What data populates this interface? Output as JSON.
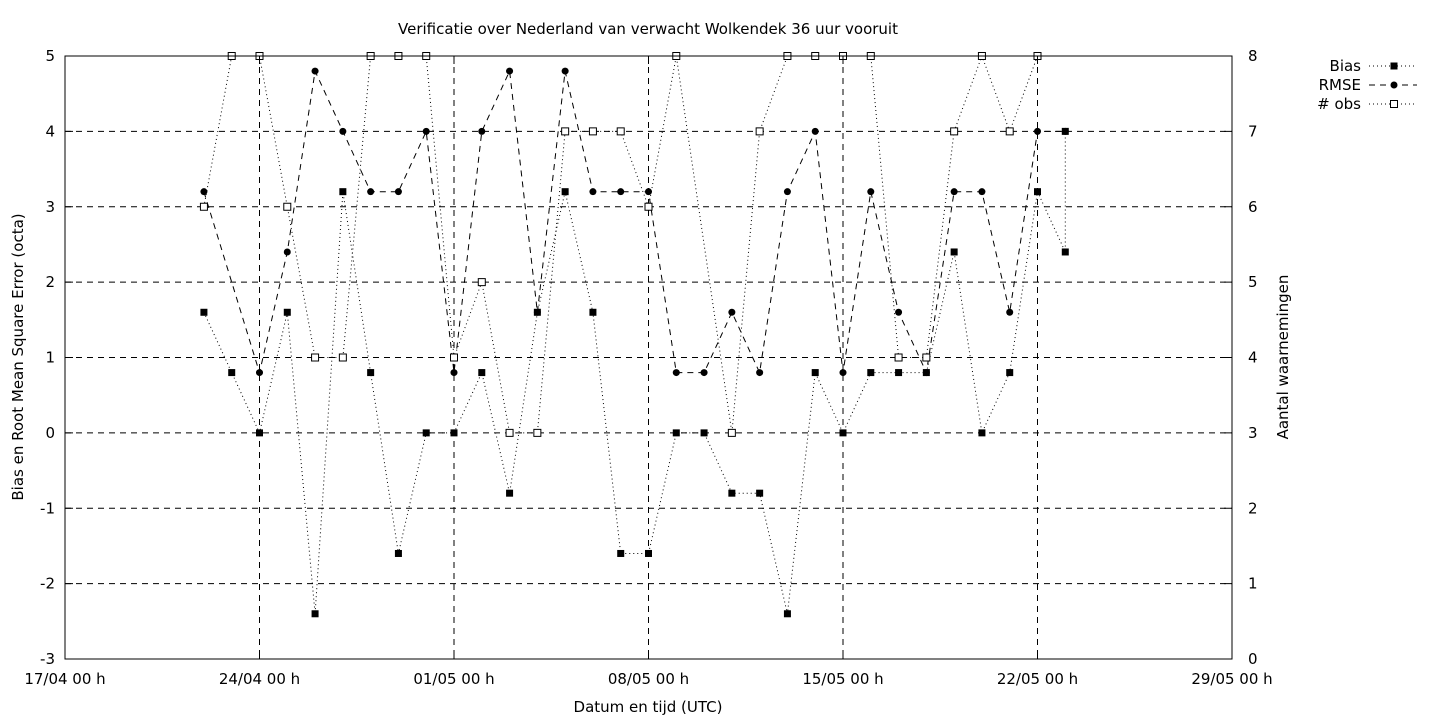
{
  "chart_data": {
    "type": "line",
    "title": "Verificatie over Nederland van verwacht Wolkendek 36 uur vooruit",
    "xlabel": "Datum en tijd (UTC)",
    "ylabel": "Bias en Root Mean Square Error (octa)",
    "y2label": "Aantal waarnemingen",
    "xlim": [
      "2020-04-17 00:00",
      "2020-05-29 00:00"
    ],
    "ylim": [
      -3,
      5
    ],
    "y2lim": [
      0,
      8
    ],
    "grid": true,
    "legend_position": "top-right, outside plot",
    "x_ticks": [
      "17/04 00 h",
      "24/04 00 h",
      "01/05 00 h",
      "08/05 00 h",
      "15/05 00 h",
      "22/05 00 h",
      "29/05 00 h"
    ],
    "y_ticks": [
      "-3",
      "-2",
      "-1",
      "0",
      "1",
      "2",
      "3",
      "4",
      "5"
    ],
    "y2_ticks": [
      "0",
      "1",
      "2",
      "3",
      "4",
      "5",
      "6",
      "7",
      "8"
    ],
    "series": [
      {
        "name": "Bias",
        "axis": "left",
        "marker": "filled-square",
        "line": "dotted",
        "points": [
          [
            "2020-04-22 00:00",
            1.6
          ],
          [
            "2020-04-23 00:00",
            0.8
          ],
          [
            "2020-04-24 00:00",
            0.0
          ],
          [
            "2020-04-25 00:00",
            1.6
          ],
          [
            "2020-04-26 00:00",
            -2.4
          ],
          [
            "2020-04-27 00:00",
            3.2
          ],
          [
            "2020-04-28 00:00",
            0.8
          ],
          [
            "2020-04-29 00:00",
            -1.6
          ],
          [
            "2020-04-30 00:00",
            0.0
          ],
          [
            "2020-05-01 00:00",
            0.0
          ],
          [
            "2020-05-02 00:00",
            0.8
          ],
          [
            "2020-05-03 00:00",
            -0.8
          ],
          [
            "2020-05-04 00:00",
            1.6
          ],
          [
            "2020-05-05 00:00",
            3.2
          ],
          [
            "2020-05-06 00:00",
            1.6
          ],
          [
            "2020-05-07 00:00",
            -1.6
          ],
          [
            "2020-05-08 00:00",
            -1.6
          ],
          [
            "2020-05-09 00:00",
            0.0
          ],
          [
            "2020-05-10 00:00",
            0.0
          ],
          [
            "2020-05-11 00:00",
            -0.8
          ],
          [
            "2020-05-12 00:00",
            -0.8
          ],
          [
            "2020-05-13 00:00",
            -2.4
          ],
          [
            "2020-05-14 00:00",
            0.8
          ],
          [
            "2020-05-15 00:00",
            0.0
          ],
          [
            "2020-05-16 00:00",
            0.8
          ],
          [
            "2020-05-17 00:00",
            0.8
          ],
          [
            "2020-05-18 00:00",
            0.8
          ],
          [
            "2020-05-19 00:00",
            2.4
          ],
          [
            "2020-05-20 00:00",
            0.0
          ],
          [
            "2020-05-21 00:00",
            0.8
          ],
          [
            "2020-05-22 00:00",
            3.2
          ],
          [
            "2020-05-23 00:00",
            2.4
          ],
          [
            "2020-05-23 00:00",
            4.0
          ]
        ]
      },
      {
        "name": "RMSE",
        "axis": "left",
        "marker": "filled-circle",
        "line": "dashed",
        "points": [
          [
            "2020-04-22 00:00",
            3.2
          ],
          [
            "2020-04-24 00:00",
            0.8
          ],
          [
            "2020-04-25 00:00",
            2.4
          ],
          [
            "2020-04-26 00:00",
            4.8
          ],
          [
            "2020-04-27 00:00",
            4.0
          ],
          [
            "2020-04-28 00:00",
            3.2
          ],
          [
            "2020-04-29 00:00",
            3.2
          ],
          [
            "2020-04-30 00:00",
            4.0
          ],
          [
            "2020-05-01 00:00",
            0.8
          ],
          [
            "2020-05-02 00:00",
            4.0
          ],
          [
            "2020-05-03 00:00",
            4.8
          ],
          [
            "2020-05-04 00:00",
            1.6
          ],
          [
            "2020-05-05 00:00",
            4.8
          ],
          [
            "2020-05-06 00:00",
            3.2
          ],
          [
            "2020-05-07 00:00",
            3.2
          ],
          [
            "2020-05-08 00:00",
            3.2
          ],
          [
            "2020-05-09 00:00",
            0.8
          ],
          [
            "2020-05-10 00:00",
            0.8
          ],
          [
            "2020-05-11 00:00",
            1.6
          ],
          [
            "2020-05-12 00:00",
            0.8
          ],
          [
            "2020-05-13 00:00",
            3.2
          ],
          [
            "2020-05-14 00:00",
            4.0
          ],
          [
            "2020-05-15 00:00",
            0.8
          ],
          [
            "2020-05-16 00:00",
            3.2
          ],
          [
            "2020-05-17 00:00",
            1.6
          ],
          [
            "2020-05-18 00:00",
            0.8
          ],
          [
            "2020-05-19 00:00",
            3.2
          ],
          [
            "2020-05-20 00:00",
            3.2
          ],
          [
            "2020-05-21 00:00",
            1.6
          ],
          [
            "2020-05-22 00:00",
            4.0
          ],
          [
            "2020-05-23 00:00",
            4.0
          ]
        ]
      },
      {
        "name": "# obs",
        "axis": "right",
        "marker": "open-square",
        "line": "dotted",
        "points": [
          [
            "2020-04-22 00:00",
            6
          ],
          [
            "2020-04-23 00:00",
            8
          ],
          [
            "2020-04-24 00:00",
            8
          ],
          [
            "2020-04-25 00:00",
            6
          ],
          [
            "2020-04-26 00:00",
            4
          ],
          [
            "2020-04-27 00:00",
            4
          ],
          [
            "2020-04-28 00:00",
            8
          ],
          [
            "2020-04-29 00:00",
            8
          ],
          [
            "2020-04-30 00:00",
            8
          ],
          [
            "2020-05-01 00:00",
            4
          ],
          [
            "2020-05-02 00:00",
            5
          ],
          [
            "2020-05-03 00:00",
            3
          ],
          [
            "2020-05-04 00:00",
            3
          ],
          [
            "2020-05-05 00:00",
            7
          ],
          [
            "2020-05-06 00:00",
            7
          ],
          [
            "2020-05-07 00:00",
            7
          ],
          [
            "2020-05-08 00:00",
            6
          ],
          [
            "2020-05-09 00:00",
            8
          ],
          [
            "2020-05-11 00:00",
            3
          ],
          [
            "2020-05-12 00:00",
            7
          ],
          [
            "2020-05-13 00:00",
            8
          ],
          [
            "2020-05-14 00:00",
            8
          ],
          [
            "2020-05-15 00:00",
            8
          ],
          [
            "2020-05-16 00:00",
            8
          ],
          [
            "2020-05-17 00:00",
            4
          ],
          [
            "2020-05-18 00:00",
            4
          ],
          [
            "2020-05-19 00:00",
            7
          ],
          [
            "2020-05-20 00:00",
            8
          ],
          [
            "2020-05-21 00:00",
            7
          ],
          [
            "2020-05-22 00:00",
            8
          ]
        ]
      }
    ]
  }
}
